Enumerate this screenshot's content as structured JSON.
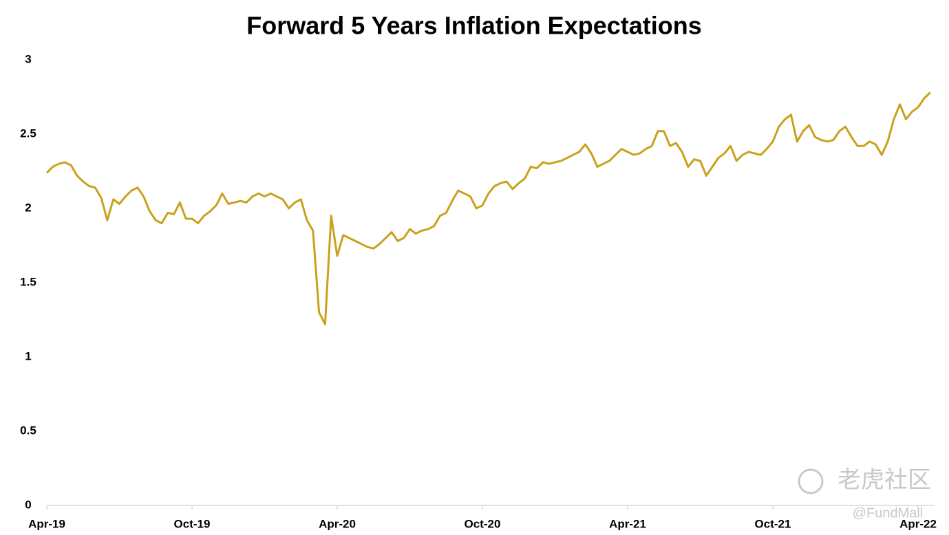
{
  "chart_data": {
    "type": "line",
    "title": "Forward 5 Years Inflation Expectations",
    "watermark": [
      "老虎社区",
      "@FundMall"
    ],
    "categories": [
      "Apr-19",
      null,
      null,
      null,
      null,
      null,
      null,
      null,
      null,
      null,
      null,
      null,
      null,
      null,
      null,
      null,
      null,
      null,
      null,
      null,
      null,
      null,
      null,
      null,
      "Oct-19",
      null,
      null,
      null,
      null,
      null,
      null,
      null,
      null,
      null,
      null,
      null,
      null,
      null,
      null,
      null,
      null,
      null,
      null,
      null,
      null,
      null,
      null,
      null,
      "Apr-20",
      null,
      null,
      null,
      null,
      null,
      null,
      null,
      null,
      null,
      null,
      null,
      null,
      null,
      null,
      null,
      null,
      null,
      null,
      null,
      null,
      null,
      null,
      null,
      "Oct-20",
      null,
      null,
      null,
      null,
      null,
      null,
      null,
      null,
      null,
      null,
      null,
      null,
      null,
      null,
      null,
      null,
      null,
      null,
      null,
      null,
      null,
      null,
      null,
      "Apr-21",
      null,
      null,
      null,
      null,
      null,
      null,
      null,
      null,
      null,
      null,
      null,
      null,
      null,
      null,
      null,
      null,
      null,
      null,
      null,
      null,
      null,
      null,
      null,
      "Oct-21",
      null,
      null,
      null,
      null,
      null,
      null,
      null,
      null,
      null,
      null,
      null,
      null,
      null,
      null,
      null,
      null,
      null,
      null,
      null,
      null,
      null,
      null,
      null,
      "Apr-22",
      null,
      null
    ],
    "series": [
      {
        "name": "Forward 5 Years Inflation Expectations",
        "color": "#c9a11b",
        "values": [
          2.24,
          2.28,
          2.3,
          2.31,
          2.29,
          2.22,
          2.18,
          2.15,
          2.14,
          2.07,
          1.92,
          2.06,
          2.03,
          2.08,
          2.12,
          2.14,
          2.08,
          1.98,
          1.92,
          1.9,
          1.97,
          1.96,
          2.04,
          1.93,
          1.93,
          1.9,
          1.95,
          1.98,
          2.02,
          2.1,
          2.03,
          2.04,
          2.05,
          2.04,
          2.08,
          2.1,
          2.08,
          2.1,
          2.08,
          2.06,
          2.0,
          2.04,
          2.06,
          1.92,
          1.85,
          1.3,
          1.22,
          1.95,
          1.68,
          1.82,
          1.8,
          1.78,
          1.76,
          1.74,
          1.73,
          1.76,
          1.8,
          1.84,
          1.78,
          1.8,
          1.86,
          1.83,
          1.85,
          1.86,
          1.88,
          1.95,
          1.97,
          2.05,
          2.12,
          2.1,
          2.08,
          2.0,
          2.02,
          2.1,
          2.15,
          2.17,
          2.18,
          2.13,
          2.17,
          2.2,
          2.28,
          2.27,
          2.31,
          2.3,
          2.31,
          2.32,
          2.34,
          2.36,
          2.38,
          2.43,
          2.37,
          2.28,
          2.3,
          2.32,
          2.36,
          2.4,
          2.38,
          2.36,
          2.37,
          2.4,
          2.42,
          2.52,
          2.52,
          2.42,
          2.44,
          2.38,
          2.28,
          2.33,
          2.32,
          2.22,
          2.28,
          2.34,
          2.37,
          2.42,
          2.32,
          2.36,
          2.38,
          2.37,
          2.36,
          2.4,
          2.45,
          2.55,
          2.6,
          2.63,
          2.45,
          2.52,
          2.56,
          2.48,
          2.46,
          2.45,
          2.46,
          2.52,
          2.55,
          2.48,
          2.42,
          2.42,
          2.45,
          2.43,
          2.36,
          2.45,
          2.6,
          2.7,
          2.6,
          2.65,
          2.68,
          2.74,
          2.78
        ]
      }
    ],
    "ylim": [
      0,
      3
    ],
    "yticks": [
      0,
      0.5,
      1,
      1.5,
      2,
      2.5,
      3
    ],
    "grid": false
  }
}
